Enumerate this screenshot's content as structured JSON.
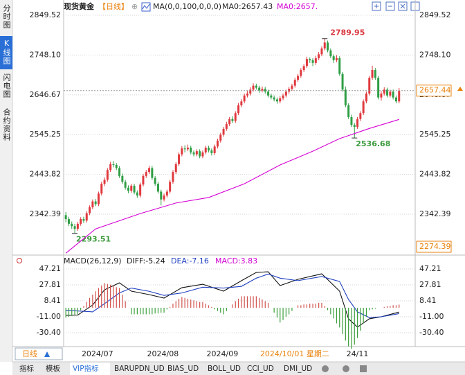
{
  "ui": {
    "side_tabs": [
      "分时图",
      "K线图",
      "闪电图",
      "合约资料"
    ],
    "bottom_tabs": [
      "指标",
      "模板",
      "VIP指标",
      "BARUPDN_UD",
      "BIAS_UD",
      "BOLL_UD",
      "CCI_UD",
      "DMI_UD"
    ],
    "period_button": "日线"
  },
  "chart_data": [
    {
      "type": "candlestick",
      "title": "现货黄金",
      "subtitle": "【日线】",
      "indicator_labels": [
        "MA0:2657.43",
        "MA0:2657."
      ],
      "categories": [
        null,
        null,
        null,
        null,
        null,
        null,
        "2024/07",
        null,
        null,
        null,
        null,
        null,
        null,
        null,
        null,
        null,
        null,
        null,
        null,
        null,
        null,
        null,
        null,
        null,
        null,
        null,
        null,
        null,
        "2024/08",
        null,
        null,
        null,
        null,
        null,
        null,
        null,
        null,
        null,
        null,
        null,
        null,
        null,
        null,
        null,
        null,
        null,
        null,
        null,
        "2024/09",
        null,
        null,
        null,
        null,
        null,
        null,
        null,
        null,
        null,
        null,
        null,
        null,
        null,
        null,
        null,
        null,
        null,
        "2024/10/01 星期二",
        null,
        null,
        null,
        null,
        null,
        null,
        null,
        null,
        null,
        null,
        null,
        null,
        null,
        null,
        null,
        null,
        null,
        null,
        null,
        null,
        null,
        null,
        null,
        null,
        null,
        null,
        null,
        null,
        "24/11",
        null,
        null,
        null,
        null,
        null,
        null,
        null,
        null,
        null,
        null,
        null,
        null,
        null,
        null,
        null,
        null,
        null
      ],
      "x_label_colors": {
        "66": "#e8820c"
      },
      "candles": [
        [
          2340,
          2348,
          2322,
          2330
        ],
        [
          2330,
          2336,
          2312,
          2318
        ],
        [
          2318,
          2324,
          2305,
          2312
        ],
        [
          2312,
          2318,
          2293.51,
          2305
        ],
        [
          2305,
          2323,
          2300,
          2318
        ],
        [
          2318,
          2335,
          2313,
          2330
        ],
        [
          2330,
          2336,
          2320,
          2326
        ],
        [
          2326,
          2350,
          2321,
          2345
        ],
        [
          2345,
          2365,
          2340,
          2360
        ],
        [
          2360,
          2380,
          2355,
          2375
        ],
        [
          2375,
          2381,
          2363,
          2368
        ],
        [
          2368,
          2400,
          2363,
          2395
        ],
        [
          2395,
          2425,
          2390,
          2420
        ],
        [
          2420,
          2436,
          2414,
          2430
        ],
        [
          2430,
          2460,
          2425,
          2455
        ],
        [
          2455,
          2476,
          2450,
          2470
        ],
        [
          2470,
          2478,
          2462,
          2468
        ],
        [
          2468,
          2473,
          2455,
          2460
        ],
        [
          2460,
          2465,
          2435,
          2440
        ],
        [
          2440,
          2446,
          2420,
          2425
        ],
        [
          2425,
          2430,
          2405,
          2410
        ],
        [
          2410,
          2416,
          2396,
          2402
        ],
        [
          2402,
          2420,
          2397,
          2415
        ],
        [
          2415,
          2420,
          2393,
          2398
        ],
        [
          2398,
          2403,
          2384,
          2390
        ],
        [
          2390,
          2423,
          2385,
          2418
        ],
        [
          2418,
          2445,
          2413,
          2440
        ],
        [
          2440,
          2455,
          2435,
          2450
        ],
        [
          2450,
          2466,
          2445,
          2460
        ],
        [
          2460,
          2465,
          2430,
          2435
        ],
        [
          2435,
          2440,
          2415,
          2420
        ],
        [
          2420,
          2425,
          2395,
          2400
        ],
        [
          2400,
          2405,
          2365,
          2380
        ],
        [
          2380,
          2395,
          2375,
          2390
        ],
        [
          2390,
          2405,
          2385,
          2400
        ],
        [
          2400,
          2430,
          2395,
          2425
        ],
        [
          2425,
          2455,
          2420,
          2450
        ],
        [
          2450,
          2475,
          2445,
          2470
        ],
        [
          2470,
          2500,
          2465,
          2495
        ],
        [
          2495,
          2516,
          2490,
          2510
        ],
        [
          2510,
          2518,
          2500,
          2508
        ],
        [
          2508,
          2520,
          2503,
          2512
        ],
        [
          2512,
          2517,
          2495,
          2500
        ],
        [
          2500,
          2505,
          2490,
          2495
        ],
        [
          2495,
          2508,
          2490,
          2503
        ],
        [
          2503,
          2508,
          2485,
          2490
        ],
        [
          2490,
          2505,
          2485,
          2500
        ],
        [
          2500,
          2517,
          2495,
          2512
        ],
        [
          2512,
          2517,
          2500,
          2505
        ],
        [
          2505,
          2510,
          2492,
          2498
        ],
        [
          2498,
          2520,
          2493,
          2515
        ],
        [
          2515,
          2535,
          2510,
          2530
        ],
        [
          2530,
          2550,
          2525,
          2545
        ],
        [
          2545,
          2565,
          2540,
          2560
        ],
        [
          2560,
          2578,
          2555,
          2572
        ],
        [
          2572,
          2590,
          2567,
          2585
        ],
        [
          2585,
          2592,
          2575,
          2580
        ],
        [
          2580,
          2605,
          2575,
          2600
        ],
        [
          2600,
          2626,
          2595,
          2620
        ],
        [
          2620,
          2636,
          2615,
          2630
        ],
        [
          2630,
          2650,
          2625,
          2645
        ],
        [
          2645,
          2658,
          2640,
          2650
        ],
        [
          2650,
          2666,
          2645,
          2660
        ],
        [
          2660,
          2676,
          2655,
          2670
        ],
        [
          2670,
          2675,
          2660,
          2665
        ],
        [
          2665,
          2670,
          2652,
          2658
        ],
        [
          2658,
          2668,
          2653,
          2662
        ],
        [
          2662,
          2667,
          2650,
          2655
        ],
        [
          2655,
          2660,
          2640,
          2645
        ],
        [
          2645,
          2650,
          2635,
          2640
        ],
        [
          2640,
          2645,
          2630,
          2635
        ],
        [
          2635,
          2640,
          2624,
          2630
        ],
        [
          2630,
          2643,
          2625,
          2638
        ],
        [
          2638,
          2650,
          2633,
          2645
        ],
        [
          2645,
          2660,
          2640,
          2655
        ],
        [
          2655,
          2667,
          2650,
          2662
        ],
        [
          2662,
          2675,
          2657,
          2670
        ],
        [
          2670,
          2690,
          2665,
          2685
        ],
        [
          2685,
          2700,
          2680,
          2695
        ],
        [
          2695,
          2715,
          2690,
          2710
        ],
        [
          2710,
          2725,
          2705,
          2720
        ],
        [
          2720,
          2744,
          2715,
          2738
        ],
        [
          2738,
          2742,
          2728,
          2735
        ],
        [
          2735,
          2740,
          2720,
          2728
        ],
        [
          2728,
          2746,
          2723,
          2740
        ],
        [
          2740,
          2756,
          2735,
          2750
        ],
        [
          2750,
          2770,
          2745,
          2765
        ],
        [
          2765,
          2789.95,
          2760,
          2780
        ],
        [
          2780,
          2785,
          2755,
          2760
        ],
        [
          2760,
          2765,
          2740,
          2745
        ],
        [
          2745,
          2750,
          2728,
          2735
        ],
        [
          2735,
          2748,
          2730,
          2740
        ],
        [
          2740,
          2745,
          2695,
          2700
        ],
        [
          2700,
          2705,
          2655,
          2660
        ],
        [
          2660,
          2668,
          2615,
          2620
        ],
        [
          2620,
          2625,
          2585,
          2590
        ],
        [
          2590,
          2596,
          2565,
          2570
        ],
        [
          2570,
          2575,
          2536.68,
          2565
        ],
        [
          2565,
          2590,
          2560,
          2585
        ],
        [
          2585,
          2605,
          2580,
          2600
        ],
        [
          2600,
          2635,
          2595,
          2630
        ],
        [
          2630,
          2655,
          2625,
          2650
        ],
        [
          2650,
          2695,
          2645,
          2690
        ],
        [
          2690,
          2721,
          2685,
          2710
        ],
        [
          2710,
          2715,
          2685,
          2690
        ],
        [
          2690,
          2695,
          2635,
          2640
        ],
        [
          2640,
          2656,
          2632,
          2650
        ],
        [
          2650,
          2666,
          2645,
          2660
        ],
        [
          2660,
          2665,
          2640,
          2645
        ],
        [
          2645,
          2660,
          2640,
          2655
        ],
        [
          2655,
          2660,
          2635,
          2640
        ],
        [
          2640,
          2645,
          2625,
          2630
        ],
        [
          2630,
          2664,
          2625,
          2657.44
        ]
      ],
      "up_color": "#e0393e",
      "down_color": "#2f9e44",
      "series": [
        {
          "name": "MA(0,0,100,0,0,0)",
          "color": "#d400d4",
          "x": [
            0,
            10,
            25,
            37,
            48,
            60,
            72,
            83,
            92,
            102,
            112
          ],
          "values": [
            2243,
            2305,
            2344,
            2371,
            2385,
            2420,
            2468,
            2503,
            2535,
            2561,
            2584
          ]
        }
      ],
      "ylim": [
        2240,
        2863.7
      ],
      "yticks": [
        2849.52,
        {
          "value": 2748.1,
          "label": "2748.10"
        },
        2646.67,
        2545.25,
        2443.82,
        2342.39
      ],
      "axis_bottom_label": 2274.39,
      "grid": true
    },
    {
      "type": "macd",
      "title": "MACD(26,12,9)",
      "series": [
        {
          "name": "DIFF:-5.24",
          "color": "#111111",
          "x": [
            0,
            4,
            9,
            13,
            18,
            22,
            28,
            33,
            39,
            46,
            53,
            59,
            64,
            68,
            72,
            78,
            86,
            92,
            95,
            98,
            102,
            106,
            112
          ],
          "values": [
            -9.3,
            -9,
            3.3,
            21.9,
            30.3,
            20.2,
            16,
            11.8,
            24.4,
            28.6,
            20.2,
            32.9,
            43,
            43.8,
            27,
            34.6,
            41.3,
            20.2,
            -13.5,
            -23.6,
            -13.5,
            -11,
            -5.24
          ]
        },
        {
          "name": "DEA:-7.16",
          "color": "#1f3fbf",
          "x": [
            0,
            9,
            13,
            18,
            22,
            28,
            33,
            39,
            46,
            53,
            59,
            64,
            68,
            72,
            78,
            86,
            92,
            95,
            98,
            102,
            106,
            112
          ],
          "values": [
            -3,
            -5,
            5,
            18,
            24,
            20,
            15,
            18,
            25,
            24,
            26,
            36,
            41,
            36,
            33,
            38,
            32,
            10,
            -5,
            -12,
            -11,
            -7.16
          ]
        },
        {
          "name": "MACD:3.83",
          "color": "#d100d1",
          "kind": "bar",
          "up_color": "#d0504a",
          "down_color": "#3a9e3a",
          "values": [
            -12,
            -11,
            -10,
            -9,
            -8,
            -3,
            2,
            7,
            12,
            16,
            20,
            24,
            27,
            30,
            29,
            28,
            27,
            25,
            24,
            16,
            8,
            0,
            -8,
            -8,
            -8,
            -8,
            -8,
            -8,
            -8,
            -8,
            -7,
            -7,
            -6,
            -6,
            -2,
            1,
            5,
            8,
            11,
            13,
            12,
            11,
            10,
            9,
            8,
            7,
            7,
            5,
            3,
            1,
            -2,
            -4,
            -6,
            -8,
            -4,
            0,
            4,
            8,
            11,
            14,
            14,
            14,
            14,
            14,
            14,
            12,
            10,
            8,
            6,
            0,
            -6,
            -12,
            -18,
            -15,
            -11,
            -8,
            -4,
            0,
            3,
            3,
            4,
            4,
            5,
            5,
            5,
            6,
            6,
            2,
            -3,
            -8,
            -13,
            -19,
            -24,
            -32,
            -40,
            -47,
            -50,
            -45,
            -37,
            -28,
            -19,
            -11,
            -3,
            -2,
            -1,
            0,
            0,
            1,
            2,
            2,
            3,
            3,
            3.83
          ]
        }
      ],
      "ylim": [
        -47.3,
        52.3
      ],
      "yticks": [
        47.21,
        27.81,
        8.41,
        {
          "value": -11,
          "label": "-11.00"
        },
        {
          "value": -30.4,
          "label": "-30.40"
        }
      ],
      "grid": true
    }
  ]
}
